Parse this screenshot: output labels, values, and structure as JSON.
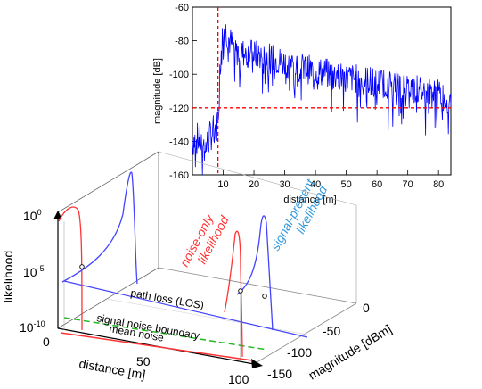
{
  "chart_data": [
    {
      "type": "line",
      "ylabel": "magnitude [dB]",
      "xlabel": "distance [m]",
      "xlim": [
        0,
        84
      ],
      "ylim": [
        -160,
        -60
      ],
      "x_ticks": [
        "10",
        "20",
        "30",
        "40",
        "50",
        "60",
        "70",
        "80"
      ],
      "y_ticks": [
        "-60",
        "-80",
        "-100",
        "-120",
        "-140",
        "-160"
      ],
      "grid": false,
      "series": [
        {
          "color": "#0000ff",
          "x": [
            0,
            2,
            4,
            6,
            8,
            8.5,
            9,
            10,
            12,
            15,
            20,
            25,
            30,
            35,
            40,
            45,
            50,
            55,
            60,
            65,
            70,
            75,
            80,
            84
          ],
          "y": [
            -140,
            -138,
            -145,
            -136,
            -130,
            -120,
            -95,
            -70,
            -80,
            -87,
            -88,
            -90,
            -93,
            -96,
            -98,
            -100,
            -102,
            -103,
            -105,
            -106,
            -108,
            -110,
            -112,
            -115
          ]
        }
      ],
      "reference_lines": [
        {
          "orientation": "vertical",
          "x": 8.3,
          "color": "#ff0000",
          "style": "dashed"
        },
        {
          "orientation": "horizontal",
          "y": -120,
          "color": "#ff0000",
          "style": "dashed"
        }
      ]
    },
    {
      "type": "line",
      "dimensions": "3d",
      "zlabel": "likelihood",
      "xlabel": "distance [m]",
      "ylabel": "magnitude [dBm]",
      "x_ticks": [
        "0",
        "50",
        "100"
      ],
      "y_ticks": [
        "0",
        "-50",
        "-100",
        "-150"
      ],
      "z_ticks": [
        "10",
        "10",
        "10"
      ],
      "z_tick_exponents": [
        "0",
        "-5",
        "-10"
      ],
      "xlim": [
        0,
        100
      ],
      "ylim": [
        -150,
        0
      ],
      "zlim_log10": [
        -10,
        0
      ],
      "curves": [
        {
          "label": "path loss (LOS)",
          "color": "#4444ff"
        },
        {
          "label": "signal noise boundary",
          "color": "#22bb22",
          "style": "dashed"
        },
        {
          "label": "mean noise",
          "color": "#ff3333"
        },
        {
          "label": "noise-only likelihood",
          "color": "#ff3333"
        },
        {
          "label": "signal-present likelihood",
          "color": "#3399dd"
        }
      ]
    }
  ]
}
